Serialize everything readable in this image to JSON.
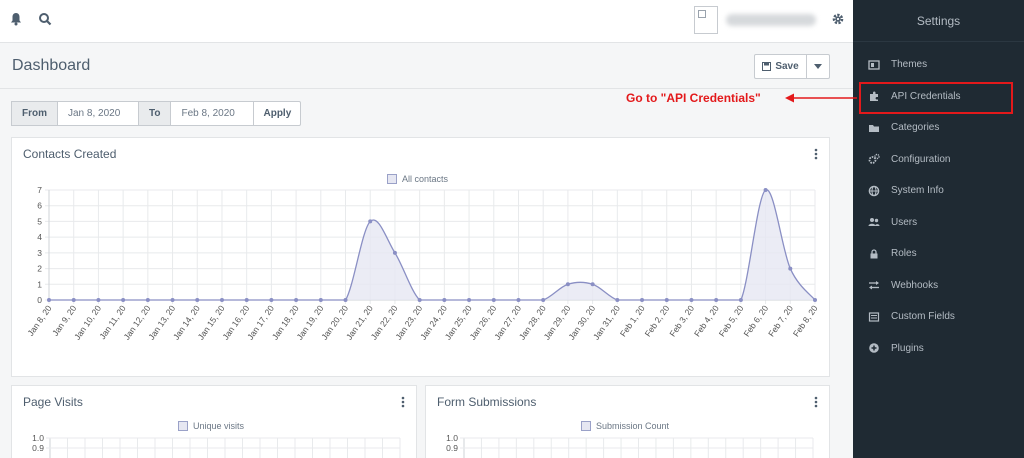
{
  "page": {
    "title": "Dashboard"
  },
  "header": {
    "save_label": "Save"
  },
  "date_filter": {
    "from_label": "From",
    "from_value": "Jan 8, 2020",
    "to_label": "To",
    "to_value": "Feb 8, 2020",
    "apply_label": "Apply"
  },
  "sidebar": {
    "title": "Settings",
    "items": [
      {
        "label": "Themes",
        "icon": "themes-icon"
      },
      {
        "label": "API Credentials",
        "icon": "puzzle-icon"
      },
      {
        "label": "Categories",
        "icon": "folder-icon"
      },
      {
        "label": "Configuration",
        "icon": "cogs-icon"
      },
      {
        "label": "System Info",
        "icon": "globe-icon"
      },
      {
        "label": "Users",
        "icon": "users-icon"
      },
      {
        "label": "Roles",
        "icon": "lock-icon"
      },
      {
        "label": "Webhooks",
        "icon": "exchange-icon"
      },
      {
        "label": "Custom Fields",
        "icon": "list-icon"
      },
      {
        "label": "Plugins",
        "icon": "plus-circle-icon"
      }
    ]
  },
  "annotation": {
    "text": "Go to \"API Credentials\"",
    "color": "#e3191b"
  },
  "colors": {
    "sidebar_bg": "#1f2a33",
    "series_line": "#8a8fc4",
    "series_fill": "#e6e7f2"
  },
  "chart_data": [
    {
      "type": "area",
      "title": "Contacts Created",
      "legend": [
        "All contacts"
      ],
      "ylim": [
        0,
        7
      ],
      "yticks": [
        "0",
        "1",
        "2",
        "3",
        "4",
        "5",
        "6",
        "7"
      ],
      "categories": [
        "Jan 8, 20",
        "Jan 9, 20",
        "Jan 10, 20",
        "Jan 11, 20",
        "Jan 12, 20",
        "Jan 13, 20",
        "Jan 14, 20",
        "Jan 15, 20",
        "Jan 16, 20",
        "Jan 17, 20",
        "Jan 18, 20",
        "Jan 19, 20",
        "Jan 20, 20",
        "Jan 21, 20",
        "Jan 22, 20",
        "Jan 23, 20",
        "Jan 24, 20",
        "Jan 25, 20",
        "Jan 26, 20",
        "Jan 27, 20",
        "Jan 28, 20",
        "Jan 29, 20",
        "Jan 30, 20",
        "Jan 31, 20",
        "Feb 1, 20",
        "Feb 2, 20",
        "Feb 3, 20",
        "Feb 4, 20",
        "Feb 5, 20",
        "Feb 6, 20",
        "Feb 7, 20",
        "Feb 8, 20"
      ],
      "series": [
        {
          "name": "All contacts",
          "values": [
            0,
            0,
            0,
            0,
            0,
            0,
            0,
            0,
            0,
            0,
            0,
            0,
            0,
            5,
            3,
            0,
            0,
            0,
            0,
            0,
            0,
            1,
            1,
            0,
            0,
            0,
            0,
            0,
            0,
            7,
            2,
            0
          ]
        }
      ],
      "grid": true,
      "legend_position": "top"
    },
    {
      "type": "line",
      "title": "Page Visits",
      "legend": [
        "Unique visits"
      ],
      "yticks": [
        "1.0",
        "0.9"
      ],
      "grid": true,
      "legend_position": "top"
    },
    {
      "type": "line",
      "title": "Form Submissions",
      "legend": [
        "Submission Count"
      ],
      "yticks": [
        "1.0",
        "0.9"
      ],
      "grid": true,
      "legend_position": "top"
    }
  ]
}
